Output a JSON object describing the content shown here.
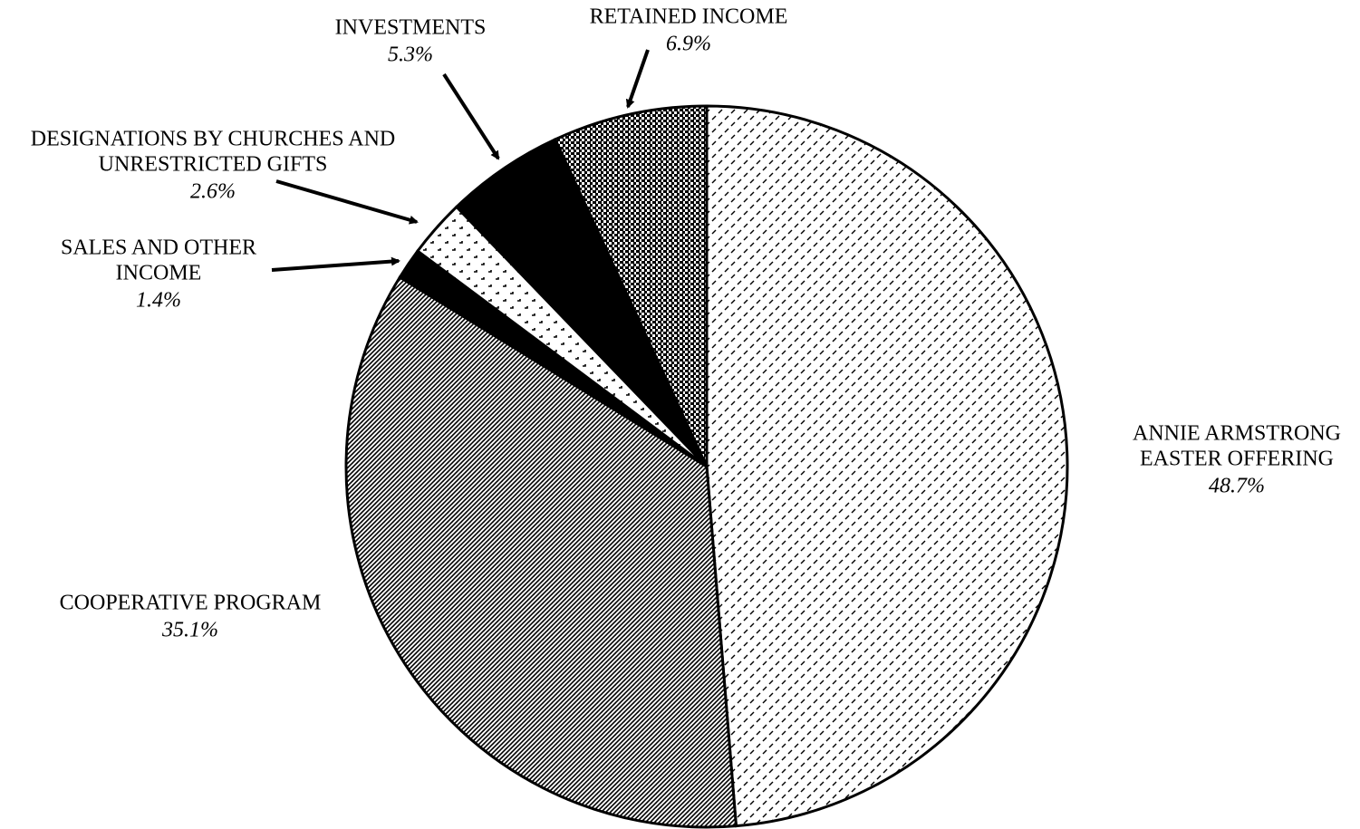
{
  "chart_data": {
    "type": "pie",
    "categories": [
      [
        "ANNIE ARMSTRONG",
        "EASTER OFFERING"
      ],
      [
        "COOPERATIVE PROGRAM"
      ],
      [
        "SALES AND OTHER",
        "INCOME"
      ],
      [
        "DESIGNATIONS BY CHURCHES AND",
        "UNRESTRICTED GIFTS"
      ],
      [
        "INVESTMENTS"
      ],
      [
        "RETAINED INCOME"
      ]
    ],
    "values": [
      48.7,
      35.1,
      1.4,
      2.6,
      5.3,
      6.9
    ],
    "value_labels": [
      "48.7%",
      "35.1%",
      "1.4%",
      "2.6%",
      "5.3%",
      "6.9%"
    ]
  }
}
